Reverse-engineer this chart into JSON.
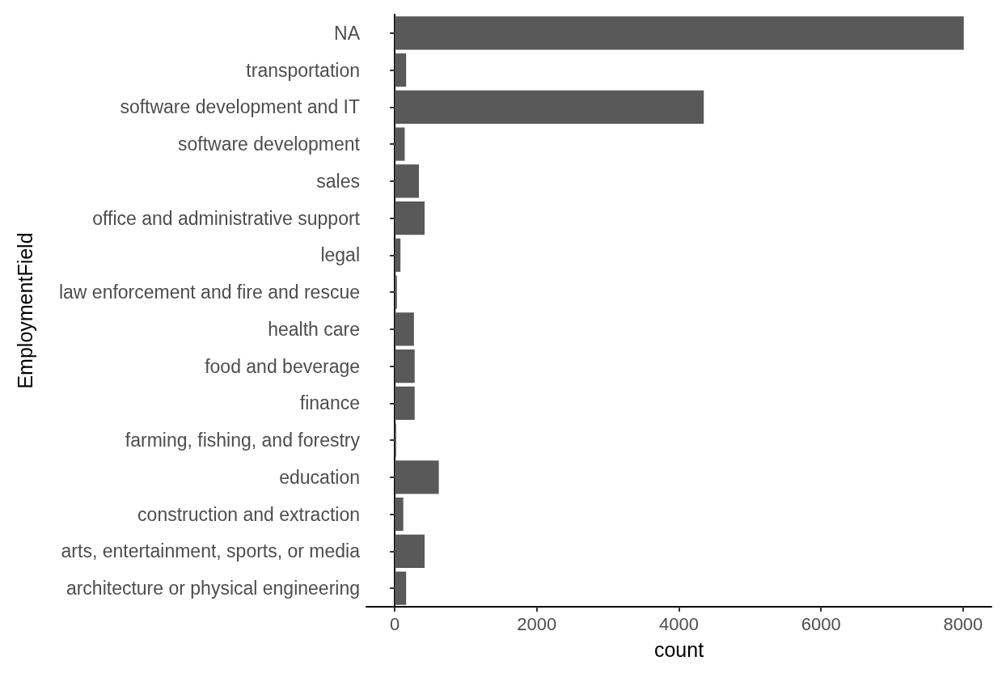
{
  "chart_data": {
    "type": "bar",
    "orientation": "horizontal",
    "xlabel": "count",
    "ylabel": "EmploymentField",
    "categories": [
      "NA",
      "transportation",
      "software development and IT",
      "software development",
      "sales",
      "office and administrative support",
      "legal",
      "law enforcement and fire and rescue",
      "health care",
      "food and beverage",
      "finance",
      "farming, fishing, and forestry",
      "education",
      "construction and extraction",
      "arts, entertainment, sports, or media",
      "architecture or physical engineering"
    ],
    "values": [
      8010,
      160,
      4350,
      140,
      340,
      420,
      80,
      30,
      270,
      280,
      280,
      20,
      620,
      120,
      420,
      160
    ],
    "color": "#595959",
    "xlim": [
      -400,
      8400
    ],
    "xticks": [
      0,
      2000,
      4000,
      6000,
      8000
    ],
    "grid": false
  }
}
